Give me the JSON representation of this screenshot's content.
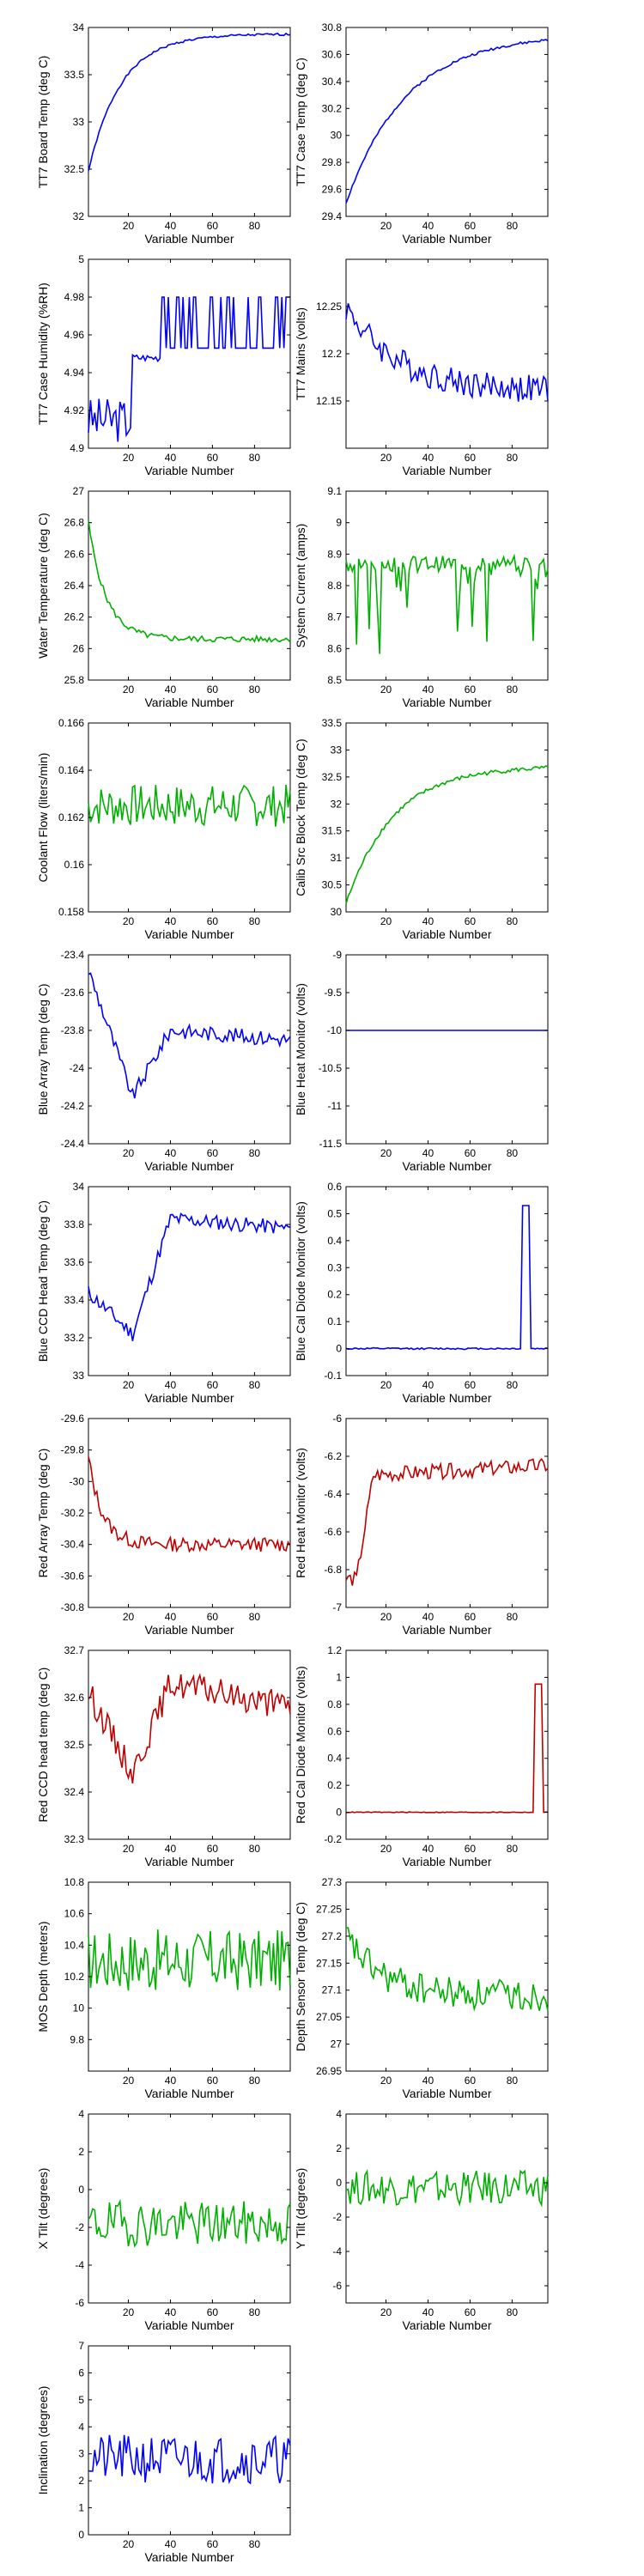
{
  "x_tick_labels": [
    "20",
    "40",
    "60",
    "80"
  ],
  "chart_data": [
    {
      "type": "line",
      "ylabel": "TT7 Board Temp (deg C)",
      "xlabel": "Variable Number",
      "color": "#0000ff",
      "xlim": [
        1,
        97
      ],
      "xticks": [
        20,
        40,
        60,
        80
      ],
      "ylim": [
        32,
        34
      ],
      "yticks": [
        32,
        32.5,
        33,
        33.5,
        34
      ],
      "ytick_labels": [
        "32",
        "32.5",
        "33",
        "33.5",
        "34"
      ],
      "kind": "rise_sat",
      "start": 32.48,
      "end": 33.93,
      "rate": 0.065,
      "noise": 0.012,
      "seed": 1
    },
    {
      "type": "line",
      "ylabel": "TT7 Case Temp (deg C)",
      "xlabel": "Variable Number",
      "color": "#0000ff",
      "xlim": [
        1,
        97
      ],
      "xticks": [
        20,
        40,
        60,
        80
      ],
      "ylim": [
        29.4,
        30.8
      ],
      "yticks": [
        29.4,
        29.6,
        29.8,
        30,
        30.2,
        30.4,
        30.6,
        30.8
      ],
      "ytick_labels": [
        "29.4",
        "29.6",
        "29.8",
        "30",
        "30.2",
        "30.4",
        "30.6",
        "30.8"
      ],
      "kind": "rise_sat",
      "start": 29.5,
      "end": 30.75,
      "rate": 0.035,
      "noise": 0.01,
      "seed": 2
    },
    {
      "type": "line",
      "ylabel": "TT7 Case Humidity (%RH)",
      "xlabel": "Variable Number",
      "color": "#0000ff",
      "xlim": [
        1,
        97
      ],
      "xticks": [
        20,
        40,
        60,
        80
      ],
      "ylim": [
        4.9,
        5
      ],
      "yticks": [
        4.9,
        4.92,
        4.94,
        4.96,
        4.98,
        5
      ],
      "ytick_labels": [
        "4.9",
        "4.92",
        "4.94",
        "4.96",
        "4.98",
        "5"
      ],
      "kind": "humidity",
      "seed": 3
    },
    {
      "type": "line",
      "ylabel": "TT7 Mains (volts)",
      "xlabel": "Variable Number",
      "color": "#0000ff",
      "xlim": [
        1,
        97
      ],
      "xticks": [
        20,
        40,
        60,
        80
      ],
      "ylim": [
        12.1,
        12.3
      ],
      "yticks": [
        12.15,
        12.2,
        12.25
      ],
      "ytick_labels": [
        "12.15",
        "12.2",
        "12.25"
      ],
      "kind": "decay",
      "start": 12.25,
      "end": 12.16,
      "rate": 0.04,
      "noise": 0.015,
      "seed": 4
    },
    {
      "type": "line",
      "ylabel": "Water Temperature (deg C)",
      "xlabel": "Variable Number",
      "color": "#00b000",
      "xlim": [
        1,
        97
      ],
      "xticks": [
        20,
        40,
        60,
        80
      ],
      "ylim": [
        25.8,
        27
      ],
      "yticks": [
        25.8,
        26,
        26.2,
        26.4,
        26.6,
        26.8,
        27
      ],
      "ytick_labels": [
        "25.8",
        "26",
        "26.2",
        "26.4",
        "26.6",
        "26.8",
        "27"
      ],
      "kind": "decay",
      "start": 26.8,
      "end": 26.06,
      "rate": 0.12,
      "noise": 0.02,
      "seed": 5
    },
    {
      "type": "line",
      "ylabel": "System Current (amps)",
      "xlabel": "Variable Number",
      "color": "#00b000",
      "xlim": [
        1,
        97
      ],
      "xticks": [
        20,
        40,
        60,
        80
      ],
      "ylim": [
        8.5,
        9.1
      ],
      "yticks": [
        8.5,
        8.6,
        8.7,
        8.8,
        8.9,
        9,
        9.1
      ],
      "ytick_labels": [
        "8.5",
        "8.6",
        "8.7",
        "8.8",
        "8.9",
        "9",
        "9.1"
      ],
      "kind": "spiky",
      "base": 8.87,
      "noise": 0.025,
      "spikes": 0.22,
      "spike_depth": 0.28,
      "seed": 6
    },
    {
      "type": "line",
      "ylabel": "Coolant Flow (liters/min)",
      "xlabel": "Variable Number",
      "color": "#00b000",
      "xlim": [
        1,
        97
      ],
      "xticks": [
        20,
        40,
        60,
        80
      ],
      "ylim": [
        0.158,
        0.166
      ],
      "yticks": [
        0.158,
        0.16,
        0.162,
        0.164,
        0.166
      ],
      "ytick_labels": [
        "0.158",
        "0.16",
        "0.162",
        "0.164",
        "0.166"
      ],
      "kind": "noise",
      "base": 0.1625,
      "noise": 0.0009,
      "seed": 7
    },
    {
      "type": "line",
      "ylabel": "Calib Src Block Temp (deg C)",
      "xlabel": "Variable Number",
      "color": "#00b000",
      "xlim": [
        1,
        97
      ],
      "xticks": [
        20,
        40,
        60,
        80
      ],
      "ylim": [
        30,
        33.5
      ],
      "yticks": [
        30,
        30.5,
        31,
        31.5,
        32,
        32.5,
        33,
        33.5
      ],
      "ytick_labels": [
        "30",
        "30.5",
        "31",
        "31.5",
        "32",
        "32.5",
        "33",
        "33.5"
      ],
      "kind": "rise_sat",
      "start": 30.15,
      "end": 32.7,
      "rate": 0.045,
      "noise": 0.04,
      "seed": 8
    },
    {
      "type": "line",
      "ylabel": "Blue Array Temp (deg C)",
      "xlabel": "Variable Number",
      "color": "#0000ff",
      "xlim": [
        1,
        97
      ],
      "xticks": [
        20,
        40,
        60,
        80
      ],
      "ylim": [
        -24.4,
        -23.4
      ],
      "yticks": [
        -24.4,
        -24.2,
        -24,
        -23.8,
        -23.6,
        -23.4
      ],
      "ytick_labels": [
        "-24.4",
        "-24.2",
        "-24",
        "-23.8",
        "-23.6",
        "-23.4"
      ],
      "kind": "dip",
      "start": -23.45,
      "low": -24.15,
      "end": -23.85,
      "noise": 0.04,
      "seed": 9
    },
    {
      "type": "line",
      "ylabel": "Blue Heat Monitor (volts)",
      "xlabel": "Variable Number",
      "color": "#0000ff",
      "xlim": [
        1,
        97
      ],
      "xticks": [
        20,
        40,
        60,
        80
      ],
      "ylim": [
        -11.5,
        -9
      ],
      "yticks": [
        -11.5,
        -11,
        -10.5,
        -10,
        -9.5,
        -9
      ],
      "ytick_labels": [
        "-11.5",
        "-11",
        "-10.5",
        "-10",
        "-9.5",
        "-9"
      ],
      "kind": "flat",
      "base": -10,
      "seed": 10
    },
    {
      "type": "line",
      "ylabel": "Blue CCD Head Temp (deg C)",
      "xlabel": "Variable Number",
      "color": "#0000ff",
      "xlim": [
        1,
        97
      ],
      "xticks": [
        20,
        40,
        60,
        80
      ],
      "ylim": [
        33,
        34
      ],
      "yticks": [
        33,
        33.2,
        33.4,
        33.6,
        33.8,
        34
      ],
      "ytick_labels": [
        "33",
        "33.2",
        "33.4",
        "33.6",
        "33.8",
        "34"
      ],
      "kind": "dip",
      "start": 33.45,
      "low": 33.22,
      "end": 33.78,
      "noise": 0.04,
      "seed": 11
    },
    {
      "type": "line",
      "ylabel": "Blue Cal Diode Monitor (volts)",
      "xlabel": "Variable Number",
      "color": "#0000ff",
      "xlim": [
        1,
        97
      ],
      "xticks": [
        20,
        40,
        60,
        80
      ],
      "ylim": [
        -0.1,
        0.6
      ],
      "yticks": [
        -0.1,
        0,
        0.1,
        0.2,
        0.3,
        0.4,
        0.5,
        0.6
      ],
      "ytick_labels": [
        "-0.1",
        "0",
        "0.1",
        "0.2",
        "0.3",
        "0.4",
        "0.5",
        "0.6"
      ],
      "kind": "pulse",
      "base": 0,
      "peak": 0.53,
      "p0": 85,
      "p1": 88,
      "seed": 12
    },
    {
      "type": "line",
      "ylabel": "Red Array Temp (deg C)",
      "xlabel": "Variable Number",
      "color": "#c00000",
      "xlim": [
        1,
        97
      ],
      "xticks": [
        20,
        40,
        60,
        80
      ],
      "ylim": [
        -30.8,
        -29.6
      ],
      "yticks": [
        -30.8,
        -30.6,
        -30.4,
        -30.2,
        -30,
        -29.8,
        -29.6
      ],
      "ytick_labels": [
        "-30.8",
        "-30.6",
        "-30.4",
        "-30.2",
        "-30",
        "-29.8",
        "-29.6"
      ],
      "kind": "decay",
      "start": -29.85,
      "end": -30.4,
      "rate": 0.15,
      "noise": 0.045,
      "seed": 13
    },
    {
      "type": "line",
      "ylabel": "Red Heat Monitor (volts)",
      "xlabel": "Variable Number",
      "color": "#c00000",
      "xlim": [
        1,
        97
      ],
      "xticks": [
        20,
        40,
        60,
        80
      ],
      "ylim": [
        -7,
        -6
      ],
      "yticks": [
        -7,
        -6.8,
        -6.6,
        -6.4,
        -6.2,
        -6
      ],
      "ytick_labels": [
        "-7",
        "-6.8",
        "-6.6",
        "-6.4",
        "-6.2",
        "-6"
      ],
      "kind": "step_rise",
      "start": -6.85,
      "mid": -6.3,
      "end": -6.25,
      "noise": 0.04,
      "seed": 14
    },
    {
      "type": "line",
      "ylabel": "Red CCD head temp (deg C)",
      "xlabel": "Variable Number",
      "color": "#c00000",
      "xlim": [
        1,
        97
      ],
      "xticks": [
        20,
        40,
        60,
        80
      ],
      "ylim": [
        32.3,
        32.7
      ],
      "yticks": [
        32.3,
        32.4,
        32.5,
        32.6,
        32.7
      ],
      "ytick_labels": [
        "32.3",
        "32.4",
        "32.5",
        "32.6",
        "32.7"
      ],
      "kind": "dip",
      "start": 32.62,
      "low": 32.44,
      "end": 32.58,
      "noise": 0.03,
      "seed": 15
    },
    {
      "type": "line",
      "ylabel": "Red Cal Diode Monitor (volts)",
      "xlabel": "Variable Number",
      "color": "#c00000",
      "xlim": [
        1,
        97
      ],
      "xticks": [
        20,
        40,
        60,
        80
      ],
      "ylim": [
        -0.2,
        1.2
      ],
      "yticks": [
        -0.2,
        0,
        0.2,
        0.4,
        0.6,
        0.8,
        1,
        1.2
      ],
      "ytick_labels": [
        "-0.2",
        "0",
        "0.2",
        "0.4",
        "0.6",
        "0.8",
        "1",
        "1.2"
      ],
      "kind": "pulse",
      "base": 0,
      "peak": 0.95,
      "p0": 91,
      "p1": 94,
      "seed": 16
    },
    {
      "type": "line",
      "ylabel": "MOS Depth  (meters)",
      "xlabel": "Variable Number",
      "color": "#00b000",
      "xlim": [
        1,
        97
      ],
      "xticks": [
        20,
        40,
        60,
        80
      ],
      "ylim": [
        9.6,
        10.8
      ],
      "yticks": [
        9.8,
        10,
        10.2,
        10.4,
        10.6,
        10.8
      ],
      "ytick_labels": [
        "9.8",
        "10",
        "10.2",
        "10.4",
        "10.6",
        "10.8"
      ],
      "kind": "noise",
      "base": 10.3,
      "noise": 0.2,
      "seed": 17
    },
    {
      "type": "line",
      "ylabel": "Depth Sensor Temp (deg C)",
      "xlabel": "Variable Number",
      "color": "#00b000",
      "xlim": [
        1,
        97
      ],
      "xticks": [
        20,
        40,
        60,
        80
      ],
      "ylim": [
        26.95,
        27.3
      ],
      "yticks": [
        26.95,
        27,
        27.05,
        27.1,
        27.15,
        27.2,
        27.25,
        27.3
      ],
      "ytick_labels": [
        "26.95",
        "27",
        "27.05",
        "27.1",
        "27.15",
        "27.2",
        "27.25",
        "27.3"
      ],
      "kind": "decay",
      "start": 27.2,
      "end": 27.09,
      "rate": 0.06,
      "noise": 0.03,
      "seed": 18
    },
    {
      "type": "line",
      "ylabel": "X Tilt  (degrees)",
      "xlabel": "Variable Number",
      "color": "#00b000",
      "xlim": [
        1,
        97
      ],
      "xticks": [
        20,
        40,
        60,
        80
      ],
      "ylim": [
        -6,
        4
      ],
      "yticks": [
        -6,
        -4,
        -2,
        0,
        2,
        4
      ],
      "ytick_labels": [
        "-6",
        "-4",
        "-2",
        "0",
        "2",
        "4"
      ],
      "kind": "noise",
      "base": -1.8,
      "noise": 1.2,
      "seed": 19
    },
    {
      "type": "line",
      "ylabel": "Y Tilt  (degrees)",
      "xlabel": "Variable Number",
      "color": "#00b000",
      "xlim": [
        1,
        97
      ],
      "xticks": [
        20,
        40,
        60,
        80
      ],
      "ylim": [
        -7,
        4
      ],
      "yticks": [
        -6,
        -4,
        -2,
        0,
        2,
        4
      ],
      "ytick_labels": [
        "-6",
        "-4",
        "-2",
        "0",
        "2",
        "4"
      ],
      "kind": "noise",
      "base": -0.3,
      "noise": 1.0,
      "seed": 20
    },
    {
      "type": "line",
      "ylabel": "Inclination  (degrees)",
      "xlabel": "Variable Number",
      "color": "#0000ff",
      "xlim": [
        1,
        97
      ],
      "xticks": [
        20,
        40,
        60,
        80
      ],
      "ylim": [
        0,
        7
      ],
      "yticks": [
        0,
        1,
        2,
        3,
        4,
        5,
        6,
        7
      ],
      "ytick_labels": [
        "0",
        "1",
        "2",
        "3",
        "4",
        "5",
        "6",
        "7"
      ],
      "kind": "noise",
      "base": 2.8,
      "noise": 0.9,
      "seed": 21
    }
  ]
}
